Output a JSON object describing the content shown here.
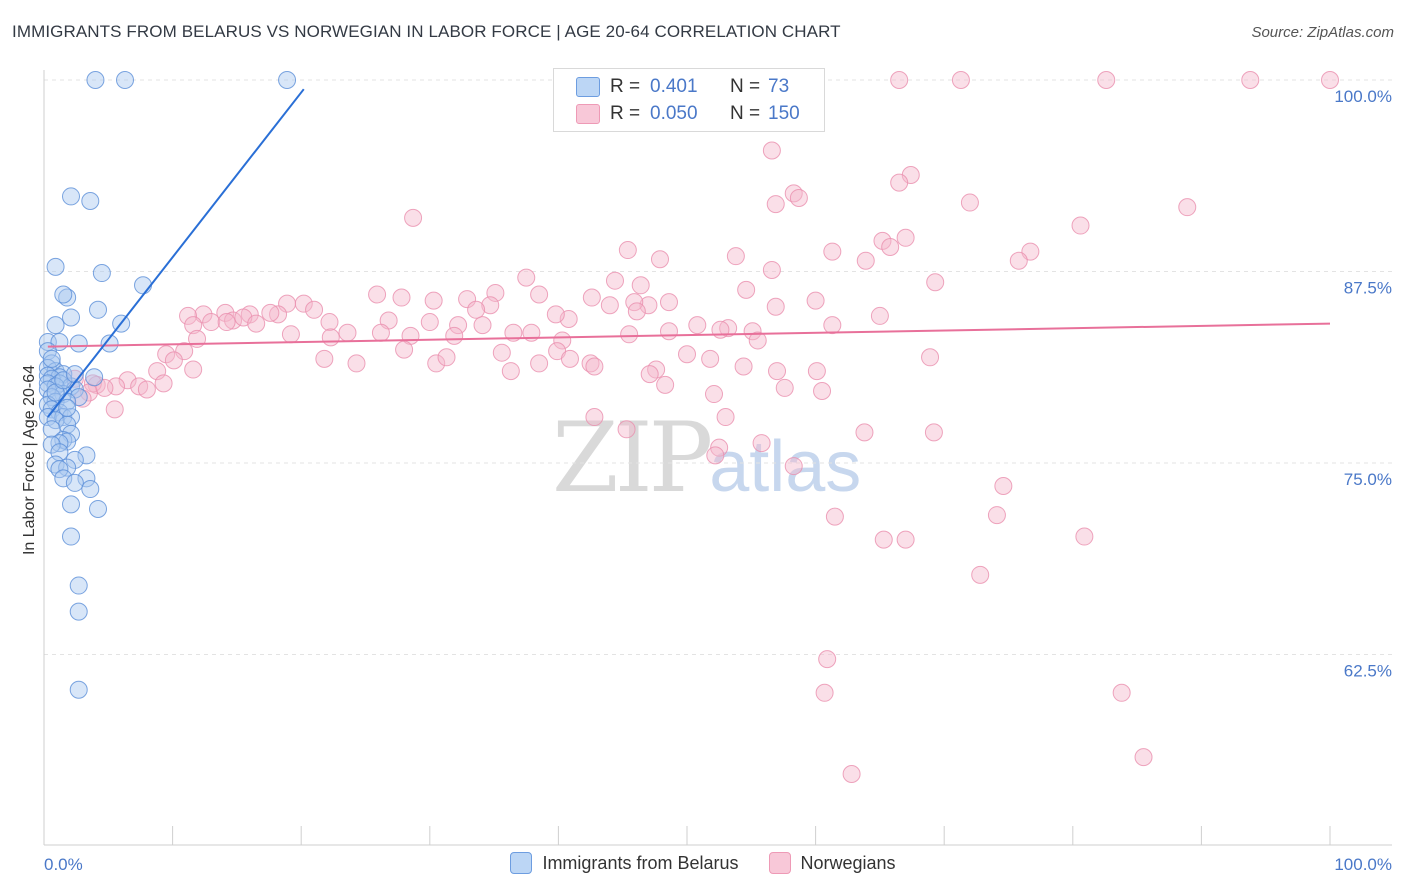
{
  "title": "IMMIGRANTS FROM BELARUS VS NORWEGIAN IN LABOR FORCE | AGE 20-64 CORRELATION CHART",
  "source": "Source: ZipAtlas.com",
  "watermark": {
    "zip": "ZIP",
    "atlas": "atlas"
  },
  "legend": {
    "r_label": "R =",
    "n_label": "N =",
    "series1": {
      "r": "0.401",
      "n": "73"
    },
    "series2": {
      "r": "0.050",
      "n": "150"
    }
  },
  "bottom_legend": [
    "Immigrants from Belarus",
    "Norwegians"
  ],
  "colors": {
    "blue_fill": "#a8c8f0",
    "blue_stroke": "#5b8fd8",
    "blue_line": "#2a6fd6",
    "pink_fill": "#f4b8cc",
    "pink_stroke": "#ea8fae",
    "pink_line": "#e8709a"
  },
  "chart_data": {
    "type": "scatter",
    "title": "IMMIGRANTS FROM BELARUS VS NORWEGIAN IN LABOR FORCE | AGE 20-64 CORRELATION CHART",
    "xlabel": "",
    "ylabel": "In Labor Force | Age 20-64",
    "xlim": [
      0,
      100
    ],
    "ylim": [
      52.0,
      100.6
    ],
    "y_ticks": [
      62.5,
      75.0,
      87.5,
      100.0
    ],
    "y_tick_labels": [
      "62.5%",
      "75.0%",
      "87.5%",
      "100.0%"
    ],
    "x_tick_labels": [
      "0.0%",
      "100.0%"
    ],
    "grid": true,
    "series": [
      {
        "name": "Immigrants from Belarus",
        "r": 0.401,
        "n": 73,
        "trend": {
          "x": [
            0.3,
            20.2
          ],
          "y": [
            78.0,
            99.4
          ]
        },
        "points": [
          [
            4.0,
            100
          ],
          [
            6.3,
            100
          ],
          [
            18.9,
            100
          ],
          [
            2.1,
            92.4
          ],
          [
            3.6,
            92.1
          ],
          [
            0.9,
            87.8
          ],
          [
            4.5,
            87.4
          ],
          [
            7.7,
            86.6
          ],
          [
            1.8,
            85.8
          ],
          [
            1.5,
            86.0
          ],
          [
            4.2,
            85.0
          ],
          [
            2.1,
            84.5
          ],
          [
            6.0,
            84.1
          ],
          [
            0.9,
            84.0
          ],
          [
            0.3,
            82.9
          ],
          [
            1.2,
            82.9
          ],
          [
            2.7,
            82.8
          ],
          [
            5.1,
            82.8
          ],
          [
            0.3,
            82.3
          ],
          [
            0.6,
            81.5
          ],
          [
            0.3,
            81.2
          ],
          [
            0.9,
            81.0
          ],
          [
            1.5,
            80.8
          ],
          [
            0.3,
            80.7
          ],
          [
            1.2,
            80.6
          ],
          [
            0.6,
            80.5
          ],
          [
            3.9,
            80.6
          ],
          [
            0.3,
            80.2
          ],
          [
            1.2,
            80.2
          ],
          [
            2.1,
            80.0
          ],
          [
            0.9,
            80.0
          ],
          [
            2.4,
            79.8
          ],
          [
            0.3,
            79.8
          ],
          [
            1.5,
            79.5
          ],
          [
            0.6,
            79.3
          ],
          [
            2.7,
            79.3
          ],
          [
            0.9,
            79.0
          ],
          [
            1.8,
            79.0
          ],
          [
            0.3,
            78.8
          ],
          [
            0.6,
            78.5
          ],
          [
            1.2,
            78.3
          ],
          [
            0.3,
            78.0
          ],
          [
            1.5,
            78.0
          ],
          [
            2.1,
            78.0
          ],
          [
            0.9,
            77.8
          ],
          [
            1.8,
            77.5
          ],
          [
            0.6,
            77.2
          ],
          [
            2.1,
            76.9
          ],
          [
            1.5,
            76.5
          ],
          [
            1.8,
            76.4
          ],
          [
            1.2,
            76.3
          ],
          [
            0.6,
            76.2
          ],
          [
            1.2,
            75.7
          ],
          [
            3.3,
            75.5
          ],
          [
            2.4,
            75.2
          ],
          [
            0.9,
            74.9
          ],
          [
            1.8,
            74.7
          ],
          [
            1.2,
            74.6
          ],
          [
            3.3,
            74.0
          ],
          [
            1.5,
            74.0
          ],
          [
            2.4,
            73.7
          ],
          [
            3.6,
            73.3
          ],
          [
            2.1,
            72.3
          ],
          [
            4.2,
            72.0
          ],
          [
            2.1,
            70.2
          ],
          [
            2.7,
            67.0
          ],
          [
            2.7,
            65.3
          ],
          [
            2.7,
            60.2
          ],
          [
            0.9,
            79.6
          ],
          [
            1.5,
            80.4
          ],
          [
            2.4,
            80.8
          ],
          [
            0.6,
            81.8
          ],
          [
            1.8,
            78.6
          ]
        ]
      },
      {
        "name": "Norwegians",
        "r": 0.05,
        "n": 150,
        "trend": {
          "x": [
            0.3,
            100
          ],
          "y": [
            82.6,
            84.1
          ]
        },
        "points": [
          [
            66.5,
            100
          ],
          [
            71.3,
            100
          ],
          [
            82.6,
            100
          ],
          [
            93.8,
            100
          ],
          [
            100,
            100
          ],
          [
            56.6,
            95.4
          ],
          [
            67.4,
            93.8
          ],
          [
            58.3,
            92.6
          ],
          [
            58.7,
            92.3
          ],
          [
            56.9,
            91.9
          ],
          [
            66.5,
            93.3
          ],
          [
            72.0,
            92.0
          ],
          [
            88.9,
            91.7
          ],
          [
            28.7,
            91.0
          ],
          [
            80.6,
            90.5
          ],
          [
            67.0,
            89.7
          ],
          [
            65.2,
            89.5
          ],
          [
            65.8,
            89.1
          ],
          [
            76.7,
            88.8
          ],
          [
            45.4,
            88.9
          ],
          [
            61.3,
            88.8
          ],
          [
            53.8,
            88.5
          ],
          [
            47.9,
            88.3
          ],
          [
            63.9,
            88.2
          ],
          [
            75.8,
            88.2
          ],
          [
            56.6,
            87.6
          ],
          [
            37.5,
            87.1
          ],
          [
            44.4,
            86.9
          ],
          [
            69.3,
            86.8
          ],
          [
            46.4,
            86.6
          ],
          [
            54.6,
            86.3
          ],
          [
            35.1,
            86.1
          ],
          [
            25.9,
            86.0
          ],
          [
            38.5,
            86.0
          ],
          [
            42.6,
            85.8
          ],
          [
            48.6,
            85.5
          ],
          [
            60.0,
            85.6
          ],
          [
            32.9,
            85.7
          ],
          [
            30.3,
            85.6
          ],
          [
            27.8,
            85.8
          ],
          [
            18.9,
            85.4
          ],
          [
            47.0,
            85.3
          ],
          [
            56.9,
            85.2
          ],
          [
            45.9,
            85.5
          ],
          [
            44.0,
            85.3
          ],
          [
            34.7,
            85.3
          ],
          [
            20.2,
            85.4
          ],
          [
            21.0,
            85.0
          ],
          [
            18.2,
            84.7
          ],
          [
            17.6,
            84.8
          ],
          [
            14.1,
            84.8
          ],
          [
            12.4,
            84.7
          ],
          [
            16.0,
            84.7
          ],
          [
            11.2,
            84.6
          ],
          [
            14.7,
            84.3
          ],
          [
            15.5,
            84.5
          ],
          [
            13.0,
            84.2
          ],
          [
            16.5,
            84.1
          ],
          [
            11.6,
            84.0
          ],
          [
            14.2,
            84.2
          ],
          [
            22.2,
            84.2
          ],
          [
            32.2,
            84.0
          ],
          [
            50.8,
            84.0
          ],
          [
            26.8,
            84.3
          ],
          [
            30.0,
            84.2
          ],
          [
            40.8,
            84.4
          ],
          [
            61.3,
            84.0
          ],
          [
            65.0,
            84.6
          ],
          [
            34.1,
            84.0
          ],
          [
            39.8,
            84.7
          ],
          [
            53.2,
            83.8
          ],
          [
            52.6,
            83.7
          ],
          [
            55.1,
            83.6
          ],
          [
            23.6,
            83.5
          ],
          [
            19.2,
            83.4
          ],
          [
            36.5,
            83.5
          ],
          [
            31.9,
            83.3
          ],
          [
            26.2,
            83.5
          ],
          [
            28.5,
            83.3
          ],
          [
            37.9,
            83.5
          ],
          [
            40.3,
            83.0
          ],
          [
            45.5,
            83.4
          ],
          [
            48.6,
            83.6
          ],
          [
            55.5,
            83.0
          ],
          [
            11.9,
            83.1
          ],
          [
            22.3,
            83.2
          ],
          [
            28.0,
            82.4
          ],
          [
            39.9,
            82.3
          ],
          [
            50.0,
            82.1
          ],
          [
            9.5,
            82.1
          ],
          [
            10.9,
            82.3
          ],
          [
            35.6,
            82.2
          ],
          [
            21.8,
            81.8
          ],
          [
            24.3,
            81.5
          ],
          [
            30.5,
            81.5
          ],
          [
            38.5,
            81.5
          ],
          [
            42.5,
            81.5
          ],
          [
            31.3,
            81.9
          ],
          [
            40.9,
            81.8
          ],
          [
            36.3,
            81.0
          ],
          [
            42.8,
            81.3
          ],
          [
            47.6,
            81.1
          ],
          [
            51.8,
            81.8
          ],
          [
            54.4,
            81.3
          ],
          [
            57.0,
            81.0
          ],
          [
            60.1,
            81.0
          ],
          [
            10.1,
            81.7
          ],
          [
            11.6,
            81.1
          ],
          [
            8.8,
            81.0
          ],
          [
            6.5,
            80.4
          ],
          [
            9.3,
            80.2
          ],
          [
            7.4,
            80.0
          ],
          [
            8.0,
            79.8
          ],
          [
            5.6,
            80.0
          ],
          [
            4.1,
            80.1
          ],
          [
            3.8,
            80.2
          ],
          [
            3.5,
            79.6
          ],
          [
            4.7,
            79.9
          ],
          [
            47.1,
            80.8
          ],
          [
            48.3,
            80.1
          ],
          [
            52.1,
            79.5
          ],
          [
            57.6,
            79.9
          ],
          [
            60.5,
            79.7
          ],
          [
            5.5,
            78.5
          ],
          [
            42.8,
            78.0
          ],
          [
            53.0,
            78.0
          ],
          [
            45.3,
            77.2
          ],
          [
            63.8,
            77.0
          ],
          [
            69.2,
            77.0
          ],
          [
            55.8,
            76.3
          ],
          [
            52.5,
            76.0
          ],
          [
            52.2,
            75.5
          ],
          [
            58.3,
            74.8
          ],
          [
            74.6,
            73.5
          ],
          [
            61.5,
            71.5
          ],
          [
            74.1,
            71.6
          ],
          [
            67.0,
            70.0
          ],
          [
            65.3,
            70.0
          ],
          [
            80.9,
            70.2
          ],
          [
            72.8,
            67.7
          ],
          [
            60.9,
            62.2
          ],
          [
            60.7,
            60.0
          ],
          [
            83.8,
            60.0
          ],
          [
            85.5,
            55.8
          ],
          [
            62.8,
            54.7
          ],
          [
            2.4,
            80.5
          ],
          [
            3.0,
            79.2
          ],
          [
            33.6,
            85.0
          ],
          [
            46.1,
            84.9
          ],
          [
            68.9,
            81.9
          ]
        ]
      }
    ]
  }
}
